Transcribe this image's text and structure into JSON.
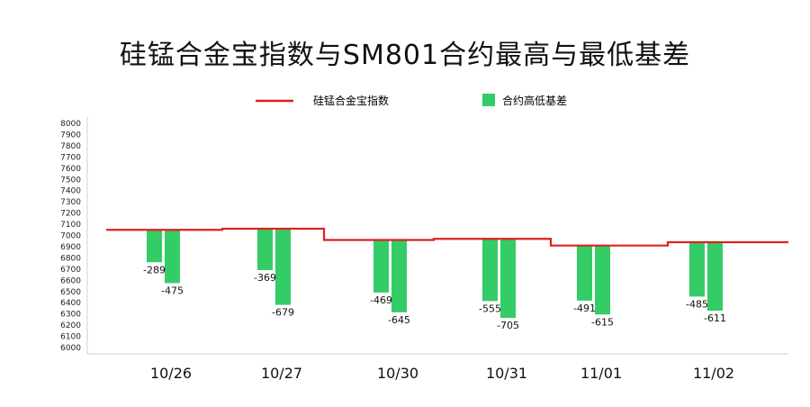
{
  "chart_data": {
    "type": "bar",
    "title": "硅锰合金宝指数与SM801合约最高与最低基差",
    "xlabel": "",
    "ylabel": "",
    "ylim": [
      6000,
      8000
    ],
    "ytick_step": 100,
    "yticks": [
      "8000",
      "7900",
      "7800",
      "7700",
      "7600",
      "7500",
      "7400",
      "7300",
      "7200",
      "7100",
      "7000",
      "6900",
      "6800",
      "6700",
      "6600",
      "6500",
      "6400",
      "6300",
      "6200",
      "6100",
      "6000"
    ],
    "categories": [
      "10/26",
      "10/27",
      "10/30",
      "10/31",
      "11/01",
      "11/02"
    ],
    "legend": {
      "position": "top",
      "line_label": "硅锰合金宝指数",
      "bar_label": "合约高低基差"
    },
    "index_series": {
      "name": "硅锰合金宝指数",
      "color": "#e02020",
      "values": [
        7050,
        7060,
        6960,
        6970,
        6910,
        6940
      ]
    },
    "basis_series": {
      "name": "合约高低基差",
      "color": "#33cc66",
      "high_basis": [
        -289,
        -369,
        -469,
        -555,
        -491,
        -485
      ],
      "low_basis": [
        -475,
        -679,
        -645,
        -705,
        -615,
        -611
      ],
      "high_labels": [
        "-289",
        "-369",
        "-469",
        "-555",
        "-491",
        "-485"
      ],
      "low_labels": [
        "-475",
        "-679",
        "-645",
        "-705",
        "-615",
        "-611"
      ]
    },
    "grid": false
  }
}
